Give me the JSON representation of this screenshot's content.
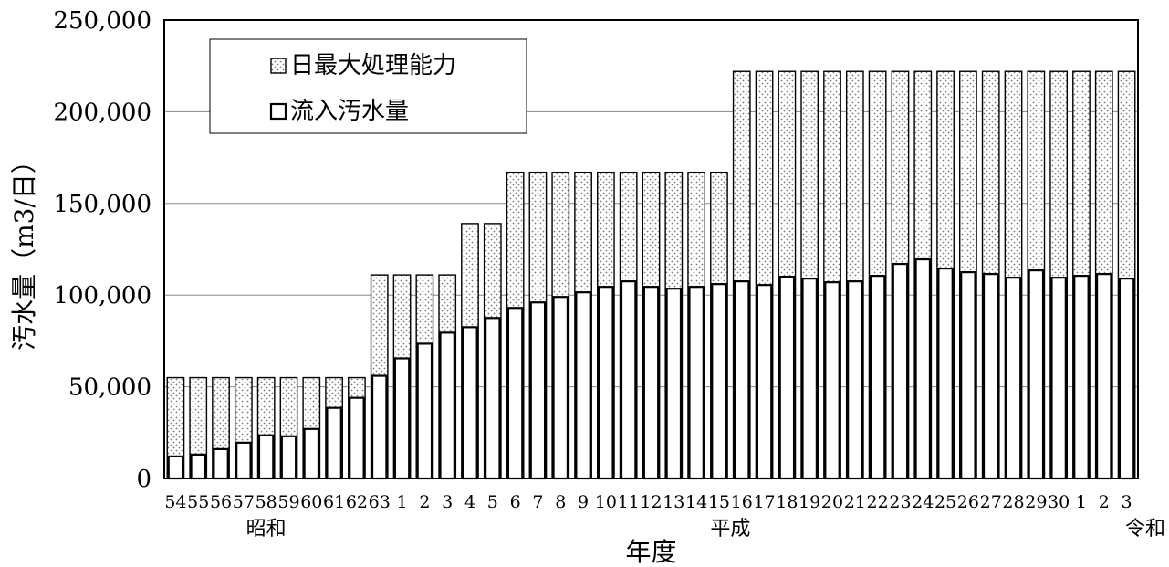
{
  "chart_data": {
    "type": "bar",
    "xlabel": "年度",
    "ylabel": "汚水量（m3/日）",
    "ylim": [
      0,
      250000
    ],
    "yticks": [
      "0",
      "50,000",
      "100,000",
      "150,000",
      "200,000",
      "250,000"
    ],
    "ytick_values": [
      0,
      50000,
      100000,
      150000,
      200000,
      250000
    ],
    "grid": true,
    "legend_position": "top-left",
    "categories": [
      "54",
      "55",
      "56",
      "57",
      "58",
      "59",
      "60",
      "61",
      "62",
      "63",
      "1",
      "2",
      "3",
      "4",
      "5",
      "6",
      "7",
      "8",
      "9",
      "10",
      "11",
      "12",
      "13",
      "14",
      "15",
      "16",
      "17",
      "18",
      "19",
      "20",
      "21",
      "22",
      "23",
      "24",
      "25",
      "26",
      "27",
      "28",
      "29",
      "30",
      "1",
      "2",
      "3"
    ],
    "era_labels": [
      {
        "label": "昭和",
        "start": 0,
        "end": 8
      },
      {
        "label": "平成",
        "start": 10,
        "end": 39
      },
      {
        "label": "令和",
        "start": 40,
        "end": 42
      }
    ],
    "series": [
      {
        "name": "日最大処理能力",
        "pattern": "dotted",
        "values": [
          55000,
          55000,
          55000,
          55000,
          55000,
          55000,
          55000,
          55000,
          55000,
          111000,
          111000,
          111000,
          111000,
          139000,
          139000,
          167000,
          167000,
          167000,
          167000,
          167000,
          167000,
          167000,
          167000,
          167000,
          167000,
          222000,
          222000,
          222000,
          222000,
          222000,
          222000,
          222000,
          222000,
          222000,
          222000,
          222000,
          222000,
          222000,
          222000,
          222000,
          222000,
          222000,
          222000
        ]
      },
      {
        "name": "流入汚水量",
        "pattern": "solid-white",
        "values": [
          12000,
          13000,
          16000,
          19500,
          23500,
          23000,
          27000,
          38500,
          44000,
          56000,
          65500,
          73500,
          79500,
          82500,
          87500,
          93000,
          96000,
          99000,
          101500,
          104500,
          107500,
          104500,
          103500,
          104500,
          106000,
          107500,
          105500,
          110000,
          109000,
          107000,
          107500,
          110500,
          117000,
          119500,
          114500,
          112500,
          111500,
          109500,
          113500,
          109500,
          110500,
          111500,
          109000
        ]
      }
    ]
  }
}
